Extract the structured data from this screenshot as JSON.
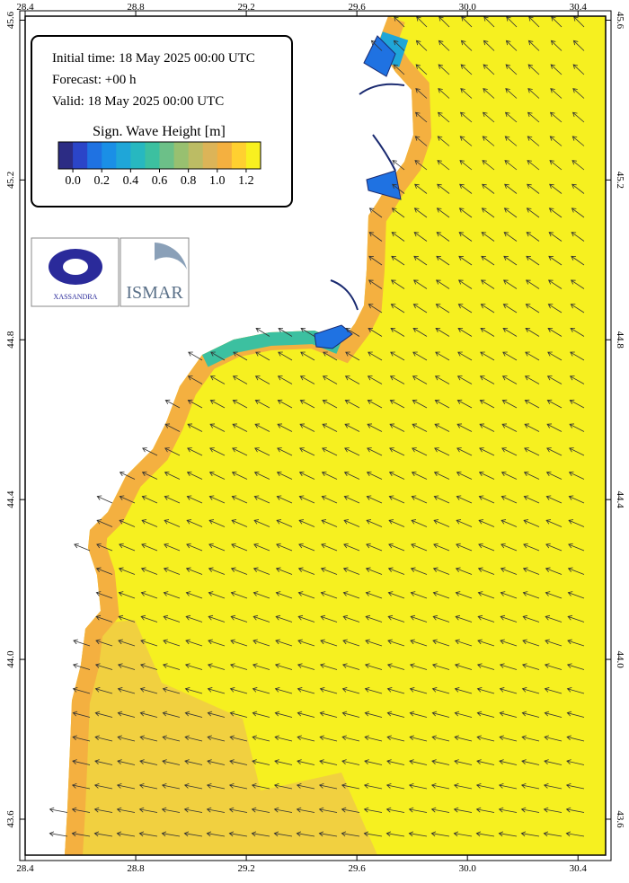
{
  "info": {
    "initial_time": "Initial time: 18 May 2025 00:00 UTC",
    "forecast": "Forecast: +00 h",
    "valid": "Valid: 18 May 2025 00:00 UTC"
  },
  "legend": {
    "title": "Sign. Wave Height [m]",
    "range": [
      -0.1,
      1.3
    ],
    "colors": [
      "#2c2c84",
      "#2b45c8",
      "#1f72e2",
      "#1a8fe6",
      "#1fa6d8",
      "#27b8c0",
      "#3cc0a0",
      "#6cc088",
      "#98c070",
      "#bcbc64",
      "#dcb458",
      "#f4b040",
      "#ffd030",
      "#f8f020"
    ],
    "ticks": [
      {
        "value": 0,
        "label": "0.0"
      },
      0.2,
      0.4,
      0.6,
      0.8,
      {
        "value": 1,
        "label": "1.0"
      },
      1.2
    ]
  },
  "axes": {
    "lon_lim": [
      28.4,
      30.5
    ],
    "lat_lim": [
      43.51,
      45.61
    ],
    "lon_ticks": [
      28.4,
      28.8,
      29.2,
      29.6,
      {
        "value": 30,
        "label": "30.0"
      },
      30.4
    ],
    "lat_ticks": [
      45.6,
      45.2,
      44.8,
      44.4,
      {
        "value": 44,
        "label": "44.0"
      },
      43.6
    ]
  },
  "logos": {
    "left": "XASSANDRA",
    "right": "ISMAR"
  }
}
